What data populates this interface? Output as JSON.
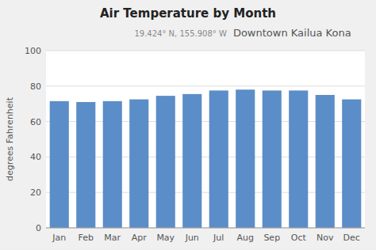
{
  "chart_data": {
    "type": "bar",
    "title": "Air Temperature by Month",
    "subtitle": [
      "19.424° N, 155.908° W",
      "Downtown Kailua Kona"
    ],
    "ylabel": "degrees Fahrenheit",
    "categories": [
      "Jan",
      "Feb",
      "Mar",
      "Apr",
      "May",
      "Jun",
      "Jul",
      "Aug",
      "Sep",
      "Oct",
      "Nov",
      "Dec"
    ],
    "values": [
      71.5,
      71.0,
      71.5,
      72.5,
      74.5,
      75.5,
      77.5,
      78.0,
      77.5,
      77.5,
      75.0,
      72.5
    ],
    "color": "#5b8dc8",
    "ylim": [
      0,
      100
    ],
    "yticks": [
      0,
      20,
      40,
      60,
      80,
      100
    ],
    "grid": true
  }
}
